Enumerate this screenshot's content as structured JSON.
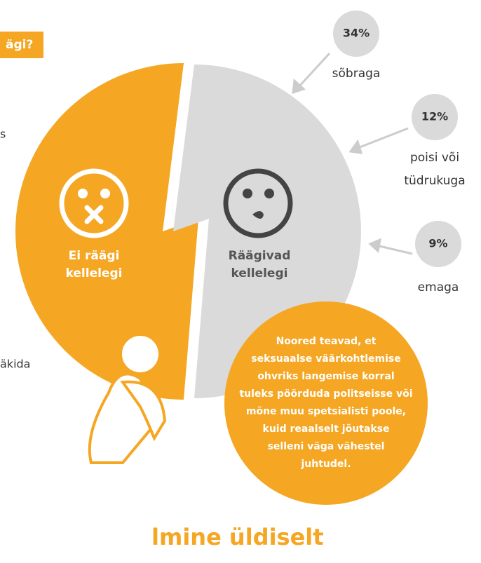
{
  "header": {
    "title": "ägi?"
  },
  "fragments": {
    "left1": "s",
    "left2": "äkida"
  },
  "pie": {
    "left_label": [
      "Ei räägi",
      "kellelegi"
    ],
    "right_label": [
      "Räägivad",
      "kellelegi"
    ]
  },
  "stats": [
    {
      "percent": "34%",
      "label": [
        "sõbraga"
      ]
    },
    {
      "percent": "12%",
      "label": [
        "poisi või",
        "tüdrukuga"
      ]
    },
    {
      "percent": "9%",
      "label": [
        "emaga"
      ]
    }
  ],
  "note": [
    "Noored teavad, et",
    "seksuaalse väärkohtlemise",
    "ohvriks langemise korral",
    "tuleks pöörduda politseisse või",
    "mõne muu spetsialisti poole,",
    "kuid reaalselt jõutakse",
    "selleni väga vähestel",
    "juhtudel."
  ],
  "footer": {
    "title": "lmine üldiselt"
  }
}
